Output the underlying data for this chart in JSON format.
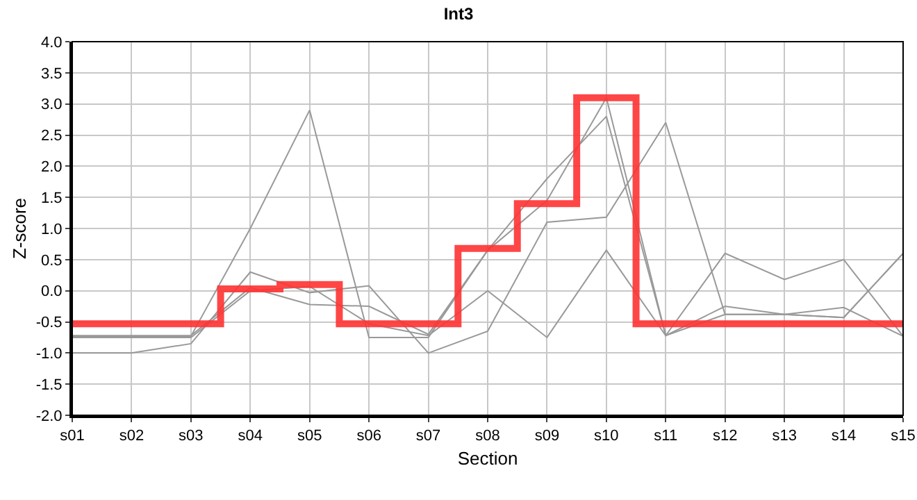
{
  "chart_data": {
    "type": "line",
    "title": "Int3",
    "xlabel": "Section",
    "ylabel": "Z-score",
    "categories": [
      "s01",
      "s02",
      "s03",
      "s04",
      "s05",
      "s06",
      "s07",
      "s08",
      "s09",
      "s10",
      "s11",
      "s12",
      "s13",
      "s14",
      "s15"
    ],
    "series": [
      {
        "color": "#999999",
        "values": [
          -0.73,
          -0.73,
          -0.73,
          1.0,
          2.9,
          -0.75,
          -0.75,
          0.65,
          1.8,
          2.8,
          -0.72,
          -0.38,
          -0.38,
          -0.43,
          0.6
        ]
      },
      {
        "color": "#999999",
        "values": [
          -0.72,
          -0.72,
          -0.72,
          0.05,
          -0.22,
          -0.25,
          -0.7,
          0.65,
          1.45,
          3.1,
          -0.72,
          0.6,
          0.18,
          0.5,
          -0.73
        ]
      },
      {
        "color": "#999999",
        "values": [
          -1.0,
          -1.0,
          -0.85,
          0.3,
          -0.03,
          0.08,
          -1.0,
          -0.65,
          1.1,
          1.18,
          2.7,
          -0.38,
          -0.38,
          -0.43,
          0.6
        ]
      },
      {
        "color": "#999999",
        "values": [
          -0.75,
          -0.75,
          -0.75,
          0.0,
          0.07,
          -0.53,
          -0.72,
          0.0,
          -0.75,
          0.65,
          -0.72,
          -0.25,
          -0.38,
          -0.27,
          -0.73
        ]
      },
      {
        "type": "step",
        "color": "#ff3333",
        "values": [
          -0.53,
          -0.53,
          -0.53,
          0.03,
          0.1,
          -0.53,
          -0.53,
          0.68,
          1.4,
          3.1,
          -0.53,
          -0.53,
          -0.53,
          -0.53,
          -0.53
        ]
      }
    ],
    "ylim": [
      -2.0,
      4.0
    ],
    "yticks": [
      {
        "value": -2,
        "label": "-2.0"
      },
      {
        "value": -1.5,
        "label": "-1.5"
      },
      {
        "value": -1,
        "label": "-1.0"
      },
      {
        "value": -0.5,
        "label": "-0.5"
      },
      {
        "value": 0,
        "label": "0.0"
      },
      {
        "value": 0.5,
        "label": "0.5"
      },
      {
        "value": 1,
        "label": "1.0"
      },
      {
        "value": 1.5,
        "label": "1.5"
      },
      {
        "value": 2,
        "label": "2.0"
      },
      {
        "value": 2.5,
        "label": "2.5"
      },
      {
        "value": 3,
        "label": "3.0"
      },
      {
        "value": 3.5,
        "label": "3.5"
      },
      {
        "value": 4,
        "label": "4.0"
      }
    ],
    "grid": true,
    "marker": "none"
  }
}
